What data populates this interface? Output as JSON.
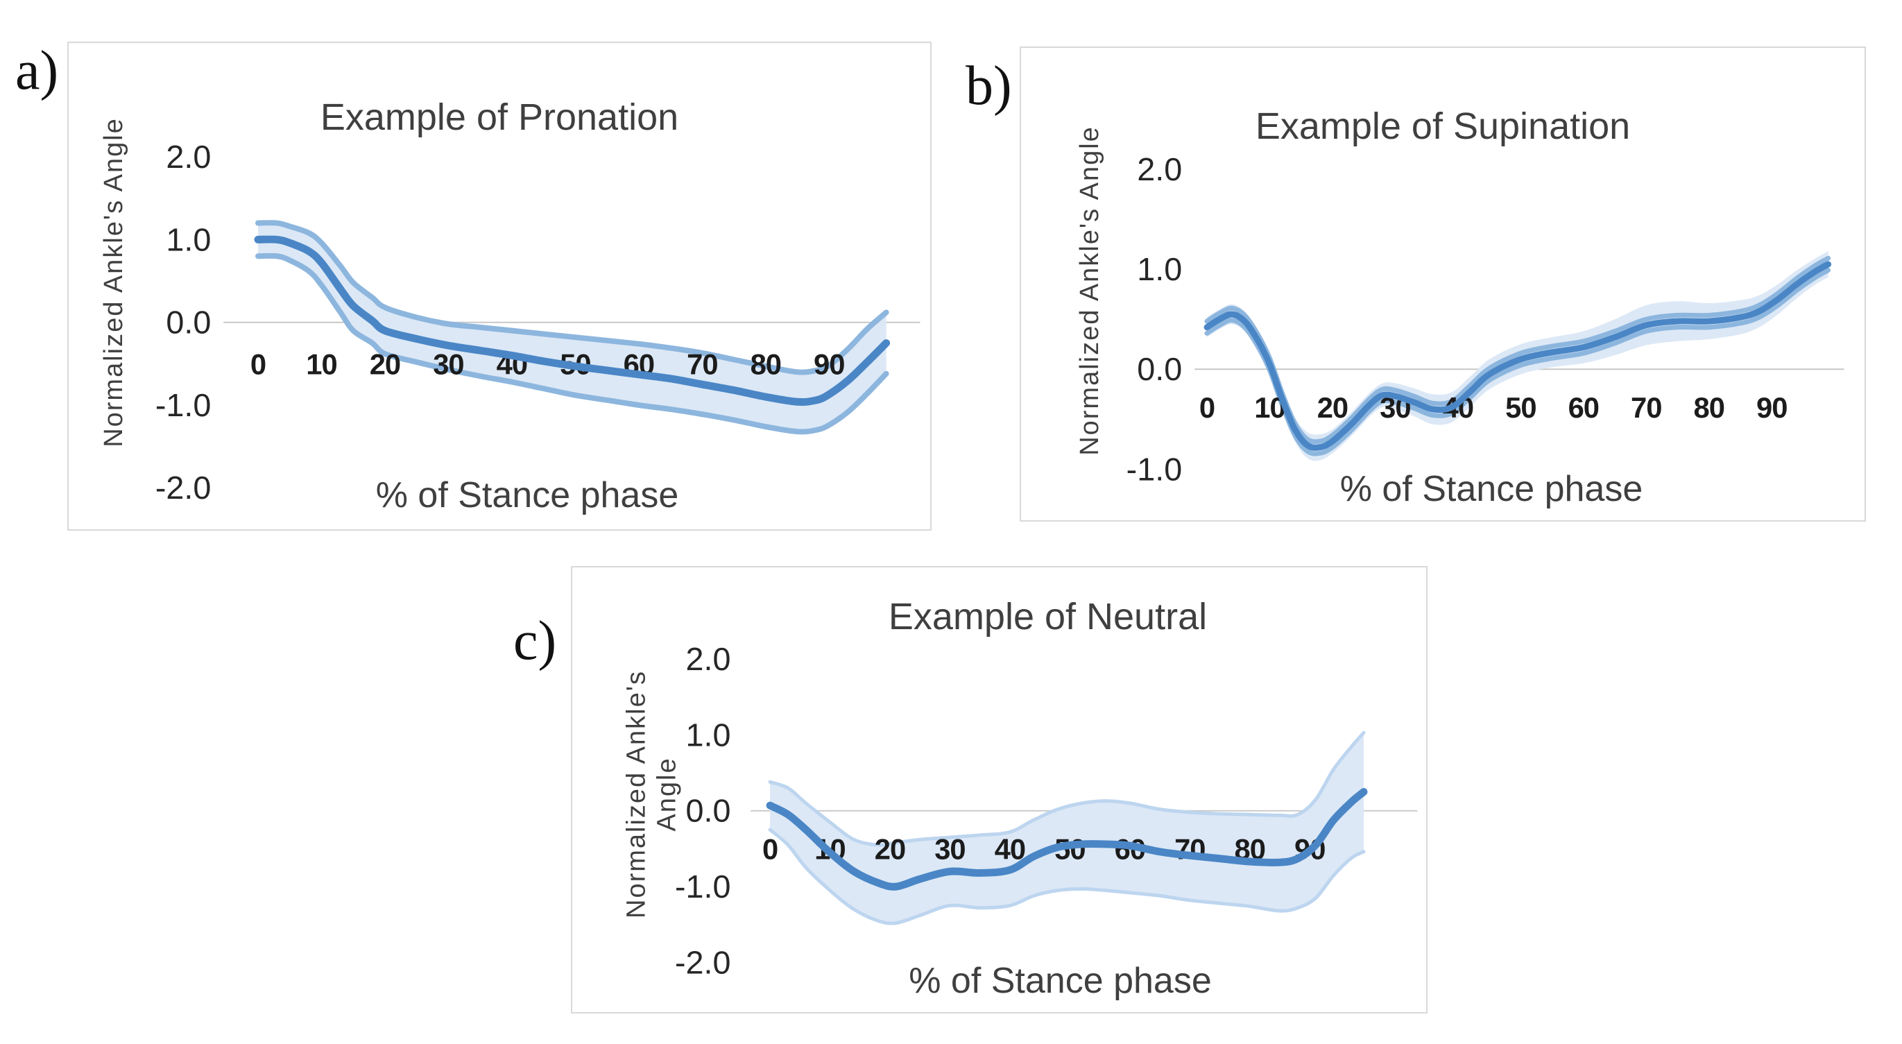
{
  "figure": {
    "type": "scientific-figure",
    "background": "#ffffff",
    "description_visible_text_only": true
  },
  "colors": {
    "mean_line": "#4a86c6",
    "band_edge": "#8db6de",
    "band_edge_light": "#bdd5ef",
    "band_fill": "#dce8f6",
    "zero_gridline": "#c8c8c8",
    "chart_border": "#d9d9d9",
    "x_tick_text": "#1c1c1c",
    "y_tick_text": "#262626",
    "title_text": "#3f3f3f"
  },
  "chart_data": [
    {
      "type": "line",
      "panel_label": "a)",
      "title": "Example of Pronation",
      "ylabel": "Normalized Ankle's Angle",
      "xlabel": "% of Stance phase",
      "ylim": [
        -2.4,
        2.4
      ],
      "xlim": [
        0,
        99
      ],
      "grid": "zero-line-only",
      "legend_position": "none",
      "y_ticks": [
        2,
        1,
        0,
        -1,
        -2
      ],
      "y_tick_labels": [
        "2.0",
        "1.0",
        "0.0",
        "-1.0",
        "-2.0"
      ],
      "x_ticks": [
        0,
        10,
        20,
        30,
        40,
        50,
        60,
        70,
        80,
        90
      ],
      "x_tick_labels": [
        "0",
        "10",
        "20",
        "30",
        "40",
        "50",
        "60",
        "70",
        "80",
        "90"
      ],
      "x": [
        0,
        3,
        5,
        8,
        10,
        13,
        15,
        18,
        20,
        25,
        30,
        35,
        40,
        45,
        50,
        55,
        60,
        65,
        70,
        75,
        80,
        85,
        88,
        90,
        93,
        96,
        99
      ],
      "series": [
        {
          "name": "mean",
          "values": [
            1.0,
            1.0,
            0.96,
            0.86,
            0.72,
            0.4,
            0.2,
            0.02,
            -0.1,
            -0.2,
            -0.28,
            -0.34,
            -0.4,
            -0.47,
            -0.53,
            -0.58,
            -0.63,
            -0.68,
            -0.75,
            -0.82,
            -0.9,
            -0.96,
            -0.94,
            -0.87,
            -0.7,
            -0.48,
            -0.25
          ]
        },
        {
          "name": "upper-bound",
          "values": [
            1.2,
            1.2,
            1.16,
            1.08,
            0.96,
            0.68,
            0.48,
            0.3,
            0.18,
            0.06,
            -0.02,
            -0.06,
            -0.1,
            -0.14,
            -0.18,
            -0.22,
            -0.26,
            -0.31,
            -0.37,
            -0.45,
            -0.53,
            -0.6,
            -0.58,
            -0.52,
            -0.32,
            -0.08,
            0.12
          ]
        },
        {
          "name": "lower-bound",
          "values": [
            0.8,
            0.8,
            0.75,
            0.62,
            0.45,
            0.12,
            -0.1,
            -0.25,
            -0.38,
            -0.48,
            -0.57,
            -0.65,
            -0.72,
            -0.8,
            -0.88,
            -0.94,
            -1.0,
            -1.05,
            -1.11,
            -1.18,
            -1.26,
            -1.32,
            -1.3,
            -1.24,
            -1.08,
            -0.86,
            -0.62
          ]
        }
      ]
    },
    {
      "type": "line",
      "panel_label": "b)",
      "title": "Example of Supination",
      "ylabel": "Normalized Ankle's Angle",
      "xlabel": "% of Stance phase",
      "ylim": [
        -1.3,
        2.4
      ],
      "xlim": [
        0,
        99
      ],
      "grid": "zero-line-only",
      "legend_position": "none",
      "inner_band": 0.06,
      "y_ticks": [
        2,
        1,
        0,
        -1
      ],
      "y_tick_labels": [
        "2.0",
        "1.0",
        "0.0",
        "-1.0"
      ],
      "x_ticks": [
        0,
        10,
        20,
        30,
        40,
        50,
        60,
        70,
        80,
        90
      ],
      "x_tick_labels": [
        "0",
        "10",
        "20",
        "30",
        "40",
        "50",
        "60",
        "70",
        "80",
        "90"
      ],
      "x": [
        0,
        2,
        4,
        6,
        8,
        10,
        12,
        14,
        16,
        18,
        20,
        23,
        26,
        28,
        30,
        33,
        36,
        39,
        42,
        45,
        50,
        55,
        60,
        65,
        70,
        75,
        80,
        85,
        88,
        91,
        94,
        97,
        99
      ],
      "series": [
        {
          "name": "mean",
          "values": [
            0.42,
            0.5,
            0.55,
            0.48,
            0.3,
            0.05,
            -0.3,
            -0.6,
            -0.76,
            -0.78,
            -0.72,
            -0.55,
            -0.35,
            -0.26,
            -0.27,
            -0.33,
            -0.4,
            -0.38,
            -0.22,
            -0.05,
            0.1,
            0.17,
            0.22,
            0.32,
            0.44,
            0.48,
            0.48,
            0.52,
            0.58,
            0.7,
            0.85,
            0.98,
            1.05
          ]
        },
        {
          "name": "upper-bound",
          "values": [
            0.52,
            0.6,
            0.65,
            0.58,
            0.4,
            0.15,
            -0.19,
            -0.48,
            -0.63,
            -0.65,
            -0.6,
            -0.43,
            -0.23,
            -0.14,
            -0.14,
            -0.19,
            -0.25,
            -0.23,
            -0.07,
            0.1,
            0.25,
            0.32,
            0.38,
            0.5,
            0.64,
            0.68,
            0.66,
            0.69,
            0.74,
            0.85,
            0.99,
            1.11,
            1.18
          ]
        },
        {
          "name": "lower-bound",
          "values": [
            0.32,
            0.4,
            0.45,
            0.38,
            0.2,
            -0.05,
            -0.41,
            -0.72,
            -0.89,
            -0.91,
            -0.84,
            -0.67,
            -0.47,
            -0.38,
            -0.4,
            -0.47,
            -0.55,
            -0.53,
            -0.37,
            -0.2,
            -0.05,
            0.02,
            0.06,
            0.14,
            0.24,
            0.28,
            0.3,
            0.35,
            0.42,
            0.55,
            0.71,
            0.85,
            0.92
          ]
        }
      ]
    },
    {
      "type": "line",
      "panel_label": "c)",
      "title": "Example of Neutral",
      "ylabel": "Normalized Ankle's Angle",
      "ylabel_lines": [
        "Normalized Ankle's",
        "Angle"
      ],
      "xlabel": "% of Stance phase",
      "ylim": [
        -2.4,
        2.4
      ],
      "xlim": [
        0,
        99
      ],
      "grid": "zero-line-only",
      "legend_position": "none",
      "light_edges": true,
      "y_ticks": [
        2,
        1,
        0,
        -1,
        -2
      ],
      "y_tick_labels": [
        "2.0",
        "1.0",
        "0.0",
        "-1.0",
        "-2.0"
      ],
      "x_ticks": [
        0,
        10,
        20,
        30,
        40,
        50,
        60,
        70,
        80,
        90
      ],
      "x_tick_labels": [
        "0",
        "10",
        "20",
        "30",
        "40",
        "50",
        "60",
        "70",
        "80",
        "90"
      ],
      "x": [
        0,
        3,
        6,
        10,
        14,
        18,
        21,
        25,
        30,
        35,
        40,
        44,
        48,
        52,
        56,
        60,
        65,
        70,
        75,
        80,
        85,
        88,
        91,
        94,
        97,
        99
      ],
      "series": [
        {
          "name": "mean",
          "values": [
            0.07,
            -0.05,
            -0.25,
            -0.55,
            -0.8,
            -0.95,
            -1.0,
            -0.9,
            -0.8,
            -0.82,
            -0.78,
            -0.6,
            -0.48,
            -0.44,
            -0.44,
            -0.46,
            -0.54,
            -0.59,
            -0.63,
            -0.67,
            -0.68,
            -0.63,
            -0.45,
            -0.12,
            0.12,
            0.25
          ]
        },
        {
          "name": "upper-bound",
          "values": [
            0.38,
            0.3,
            0.1,
            -0.15,
            -0.38,
            -0.45,
            -0.42,
            -0.38,
            -0.35,
            -0.32,
            -0.28,
            -0.12,
            0.02,
            0.1,
            0.13,
            0.1,
            0.02,
            -0.02,
            -0.04,
            -0.05,
            -0.06,
            -0.05,
            0.15,
            0.55,
            0.85,
            1.03
          ]
        },
        {
          "name": "lower-bound",
          "values": [
            -0.25,
            -0.45,
            -0.75,
            -1.05,
            -1.3,
            -1.45,
            -1.48,
            -1.38,
            -1.25,
            -1.28,
            -1.25,
            -1.12,
            -1.05,
            -1.03,
            -1.05,
            -1.08,
            -1.12,
            -1.18,
            -1.22,
            -1.26,
            -1.32,
            -1.28,
            -1.15,
            -0.85,
            -0.62,
            -0.54
          ]
        }
      ]
    }
  ]
}
